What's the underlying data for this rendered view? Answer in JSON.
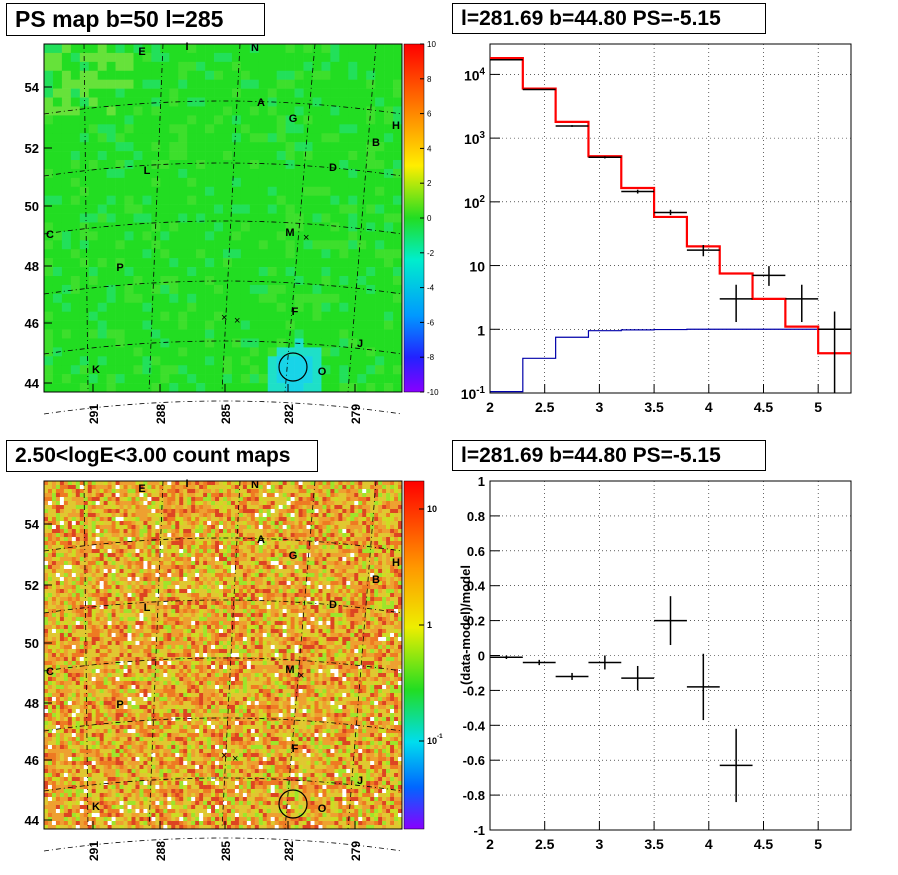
{
  "panels": {
    "ps_map_title": "PS map b=50 l=285",
    "spectrum_title": "l=281.69 b=44.80 PS=-5.15",
    "count_map_title": "2.50<logE<3.00 count maps",
    "residual_title": "l=281.69 b=44.80 PS=-5.15"
  },
  "colors": {
    "data": "#000000",
    "model": "#ff0000",
    "background_model": "#0000aa",
    "ps_map_base": "#22dd22",
    "count_map_base": "#e0c830"
  },
  "source_labels": [
    {
      "id": "E"
    },
    {
      "id": "I"
    },
    {
      "id": "N"
    },
    {
      "id": "A"
    },
    {
      "id": "G"
    },
    {
      "id": "H"
    },
    {
      "id": "B"
    },
    {
      "id": "L"
    },
    {
      "id": "D"
    },
    {
      "id": "C"
    },
    {
      "id": "M"
    },
    {
      "id": "P"
    },
    {
      "id": "F"
    },
    {
      "id": "J"
    },
    {
      "id": "K"
    },
    {
      "id": "O"
    }
  ],
  "chart_data": [
    {
      "type": "heatmap",
      "title": "PS map b=50 l=285",
      "x_tick_labels": [
        "291",
        "288",
        "285",
        "282",
        "279"
      ],
      "y_tick_labels": [
        "54",
        "52",
        "50",
        "48",
        "46",
        "44"
      ],
      "colorbar_labels": [
        "10",
        "8",
        "6",
        "4",
        "2",
        "0",
        "-2",
        "-4",
        "-6",
        "-8",
        "-10"
      ],
      "zlim": [
        -10,
        10
      ],
      "grid": true
    },
    {
      "type": "line",
      "title": "l=281.69 b=44.80 PS=-5.15",
      "x_tick_labels": [
        "2",
        "2.5",
        "3",
        "3.5",
        "4",
        "4.5",
        "5"
      ],
      "y_tick_labels": [
        "10^-1",
        "1",
        "10",
        "10^2",
        "10^3",
        "10^4"
      ],
      "xlim": [
        2,
        5.3
      ],
      "ylim": [
        0.1,
        30000
      ],
      "log_y": true,
      "grid": true,
      "bins": [
        2.0,
        2.3,
        2.6,
        2.9,
        3.2,
        3.5,
        3.8,
        4.1,
        4.4,
        4.7,
        5.0,
        5.3
      ],
      "model_values": [
        18000,
        6000,
        1800,
        520,
        165,
        58,
        20,
        7.5,
        3.0,
        1.1,
        0.42
      ],
      "background_values": [
        0.105,
        0.35,
        0.75,
        0.95,
        0.98,
        0.99,
        1.0,
        1.0,
        1.0,
        1.0,
        1.0
      ],
      "data_points": [
        {
          "x": 2.15,
          "y": 17000,
          "lo": 16800,
          "hi": 17200,
          "xerr": 0.15
        },
        {
          "x": 2.45,
          "y": 5800,
          "lo": 5700,
          "hi": 5900,
          "xerr": 0.15
        },
        {
          "x": 2.75,
          "y": 1550,
          "lo": 1500,
          "hi": 1600,
          "xerr": 0.15
        },
        {
          "x": 3.05,
          "y": 500,
          "lo": 480,
          "hi": 520,
          "xerr": 0.15
        },
        {
          "x": 3.35,
          "y": 145,
          "lo": 135,
          "hi": 155,
          "xerr": 0.15
        },
        {
          "x": 3.65,
          "y": 68,
          "lo": 62,
          "hi": 75,
          "xerr": 0.15
        },
        {
          "x": 3.95,
          "y": 17.5,
          "lo": 14,
          "hi": 21,
          "xerr": 0.15
        },
        {
          "x": 4.25,
          "y": 3.0,
          "lo": 1.3,
          "hi": 5.0,
          "xerr": 0.15
        },
        {
          "x": 4.55,
          "y": 7.0,
          "lo": 4.8,
          "hi": 9.8,
          "xerr": 0.15
        },
        {
          "x": 4.85,
          "y": 3.0,
          "lo": 1.3,
          "hi": 5.0,
          "xerr": 0.15
        },
        {
          "x": 5.15,
          "y": 1.0,
          "lo": 0.1,
          "hi": 1.9,
          "xerr": 0.15
        }
      ]
    },
    {
      "type": "heatmap",
      "title": "2.50<logE<3.00 count maps",
      "x_tick_labels": [
        "291",
        "288",
        "285",
        "282",
        "279"
      ],
      "y_tick_labels": [
        "54",
        "52",
        "50",
        "48",
        "46",
        "44"
      ],
      "colorbar_labels": [
        "10",
        "1",
        "10^-1"
      ],
      "log_z": true,
      "grid": true
    },
    {
      "type": "scatter",
      "title": "l=281.69 b=44.80 PS=-5.15",
      "ylabel": "(data-model)/model",
      "x_tick_labels": [
        "2",
        "2.5",
        "3",
        "3.5",
        "4",
        "4.5",
        "5"
      ],
      "y_tick_labels": [
        "1",
        "0.8",
        "0.6",
        "0.4",
        "0.2",
        "0",
        "-0.2",
        "-0.4",
        "-0.6",
        "-0.8",
        "-1"
      ],
      "xlim": [
        2,
        5.3
      ],
      "ylim": [
        -1,
        1
      ],
      "grid": true,
      "points": [
        {
          "x": 2.15,
          "y": -0.01,
          "err": 0.01,
          "xerr": 0.15
        },
        {
          "x": 2.45,
          "y": -0.04,
          "err": 0.015,
          "xerr": 0.15
        },
        {
          "x": 2.75,
          "y": -0.12,
          "err": 0.02,
          "xerr": 0.15
        },
        {
          "x": 3.05,
          "y": -0.04,
          "err": 0.04,
          "xerr": 0.15
        },
        {
          "x": 3.35,
          "y": -0.13,
          "err": 0.07,
          "xerr": 0.15
        },
        {
          "x": 3.65,
          "y": 0.2,
          "err": 0.14,
          "xerr": 0.15
        },
        {
          "x": 3.95,
          "y": -0.18,
          "err": 0.19,
          "xerr": 0.15
        },
        {
          "x": 4.25,
          "y": -0.63,
          "err": 0.21,
          "xerr": 0.15
        }
      ]
    }
  ]
}
